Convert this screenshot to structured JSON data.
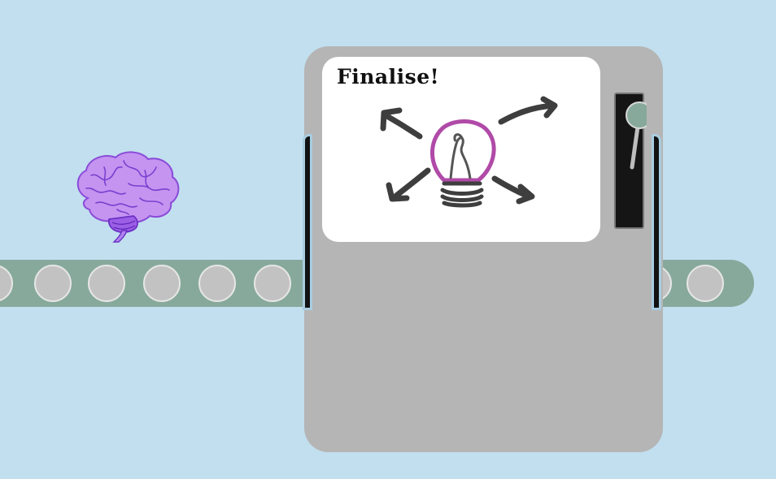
{
  "scene": {
    "background_color": "#c2dfef",
    "belt_color": "#86a99b",
    "machine_color": "#b5b5b5"
  },
  "machine": {
    "screen_title": "Finalise!",
    "screen_icon": "lightbulb-idea-icon"
  },
  "item": {
    "icon": "brain-icon",
    "color": "#b07ae8"
  },
  "lever": {
    "icon": "lever-handle-icon",
    "knob_color": "#86a99b"
  }
}
